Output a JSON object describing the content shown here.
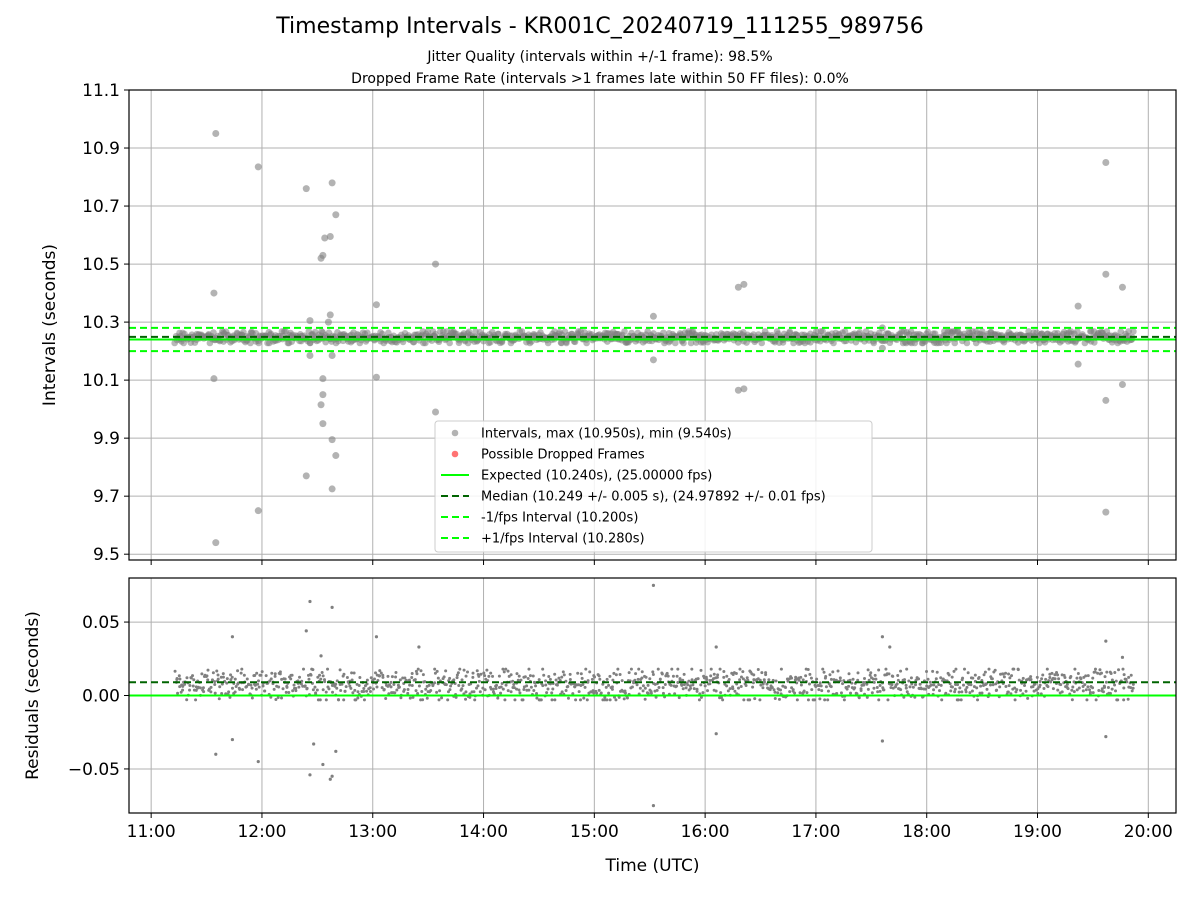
{
  "title": "Timestamp Intervals - KR001C_20240719_111255_989756",
  "subtitle_1": "Jitter Quality (intervals within +/-1 frame): 98.5%",
  "subtitle_2": "Dropped Frame Rate (intervals >1 frames late within 50 FF files): 0.0%",
  "colors": {
    "points": "#808080",
    "dropped": "#ff0000",
    "expected": "#00ff00",
    "median": "#006400",
    "fps_bounds": "#00ff00",
    "grid": "#b0b0b0"
  },
  "chart_data": [
    {
      "type": "scatter",
      "panel": "intervals",
      "ylabel": "Intervals (seconds)",
      "xlim": [
        "10:48",
        "20:15"
      ],
      "ylim": [
        9.48,
        11.1
      ],
      "yticks": [
        "9.5",
        "9.7",
        "9.9",
        "10.1",
        "10.3",
        "10.5",
        "10.7",
        "10.9",
        "11.1"
      ],
      "xticks": [
        "11:00",
        "12:00",
        "13:00",
        "14:00",
        "15:00",
        "16:00",
        "17:00",
        "18:00",
        "19:00",
        "20:00"
      ],
      "grid": true,
      "legend_position": "lower-center",
      "legend": [
        "Intervals, max (10.950s), min (9.540s)",
        "Possible Dropped Frames",
        "Expected (10.240s), (25.00000 fps)",
        "Median (10.249 +/- 0.005 s), (24.97892 +/- 0.01 fps)",
        "-1/fps Interval (10.200s)",
        "+1/fps Interval (10.280s)"
      ],
      "data_time_range": [
        "11:13",
        "19:52"
      ],
      "typical_band": [
        10.228,
        10.268
      ],
      "lines": {
        "expected": 10.24,
        "median": 10.249,
        "minus_fps": 10.2,
        "plus_fps": 10.28
      },
      "outliers": [
        {
          "t": "11:35",
          "y": 10.95
        },
        {
          "t": "11:34",
          "y": 10.4
        },
        {
          "t": "11:34",
          "y": 10.105
        },
        {
          "t": "11:35",
          "y": 9.54
        },
        {
          "t": "11:58",
          "y": 10.835
        },
        {
          "t": "11:58",
          "y": 9.65
        },
        {
          "t": "12:24",
          "y": 10.76
        },
        {
          "t": "12:24",
          "y": 9.77
        },
        {
          "t": "12:26",
          "y": 10.305
        },
        {
          "t": "12:26",
          "y": 10.185
        },
        {
          "t": "12:32",
          "y": 10.52
        },
        {
          "t": "12:33",
          "y": 10.53
        },
        {
          "t": "12:34",
          "y": 10.59
        },
        {
          "t": "12:37",
          "y": 10.595
        },
        {
          "t": "12:38",
          "y": 10.78
        },
        {
          "t": "12:40",
          "y": 10.67
        },
        {
          "t": "12:33",
          "y": 10.105
        },
        {
          "t": "12:32",
          "y": 10.015
        },
        {
          "t": "12:33",
          "y": 10.05
        },
        {
          "t": "12:33",
          "y": 9.95
        },
        {
          "t": "12:38",
          "y": 9.895
        },
        {
          "t": "12:40",
          "y": 9.84
        },
        {
          "t": "12:38",
          "y": 9.725
        },
        {
          "t": "12:37",
          "y": 10.325
        },
        {
          "t": "12:38",
          "y": 10.185
        },
        {
          "t": "12:36",
          "y": 10.3
        },
        {
          "t": "13:02",
          "y": 10.36
        },
        {
          "t": "13:02",
          "y": 10.11
        },
        {
          "t": "13:34",
          "y": 10.5
        },
        {
          "t": "13:34",
          "y": 9.99
        },
        {
          "t": "15:32",
          "y": 10.32
        },
        {
          "t": "15:32",
          "y": 10.17
        },
        {
          "t": "16:18",
          "y": 10.42
        },
        {
          "t": "16:21",
          "y": 10.43
        },
        {
          "t": "16:18",
          "y": 10.065
        },
        {
          "t": "16:21",
          "y": 10.07
        },
        {
          "t": "17:36",
          "y": 10.28
        },
        {
          "t": "17:36",
          "y": 10.21
        },
        {
          "t": "19:22",
          "y": 10.355
        },
        {
          "t": "19:22",
          "y": 10.155
        },
        {
          "t": "19:37",
          "y": 10.85
        },
        {
          "t": "19:37",
          "y": 10.465
        },
        {
          "t": "19:37",
          "y": 10.03
        },
        {
          "t": "19:37",
          "y": 9.645
        },
        {
          "t": "19:46",
          "y": 10.42
        },
        {
          "t": "19:46",
          "y": 10.085
        }
      ]
    },
    {
      "type": "scatter",
      "panel": "residuals",
      "ylabel": "Residuals (seconds)",
      "xlabel": "Time (UTC)",
      "xlim": [
        "10:48",
        "20:15"
      ],
      "ylim": [
        -0.08,
        0.08
      ],
      "yticks": [
        "−0.05",
        "0.00",
        "0.05"
      ],
      "xticks": [
        "11:00",
        "12:00",
        "13:00",
        "14:00",
        "15:00",
        "16:00",
        "17:00",
        "18:00",
        "19:00",
        "20:00"
      ],
      "grid": true,
      "data_time_range": [
        "11:13",
        "19:52"
      ],
      "typical_band": [
        -0.003,
        0.018
      ],
      "lines": {
        "expected": 0.0,
        "median": 0.009
      },
      "outliers": [
        {
          "t": "11:35",
          "y": -0.04
        },
        {
          "t": "11:44",
          "y": 0.04
        },
        {
          "t": "11:44",
          "y": -0.03
        },
        {
          "t": "11:58",
          "y": -0.045
        },
        {
          "t": "12:24",
          "y": 0.044
        },
        {
          "t": "12:26",
          "y": 0.064
        },
        {
          "t": "12:26",
          "y": -0.054
        },
        {
          "t": "12:28",
          "y": -0.033
        },
        {
          "t": "12:32",
          "y": 0.027
        },
        {
          "t": "12:33",
          "y": -0.047
        },
        {
          "t": "12:37",
          "y": -0.057
        },
        {
          "t": "12:38",
          "y": -0.055
        },
        {
          "t": "12:38",
          "y": 0.06
        },
        {
          "t": "12:40",
          "y": -0.038
        },
        {
          "t": "13:02",
          "y": 0.04
        },
        {
          "t": "13:25",
          "y": 0.033
        },
        {
          "t": "15:32",
          "y": 0.075
        },
        {
          "t": "15:32",
          "y": -0.075
        },
        {
          "t": "16:06",
          "y": 0.033
        },
        {
          "t": "16:06",
          "y": -0.026
        },
        {
          "t": "17:36",
          "y": 0.04
        },
        {
          "t": "17:36",
          "y": -0.031
        },
        {
          "t": "17:40",
          "y": 0.033
        },
        {
          "t": "19:37",
          "y": 0.037
        },
        {
          "t": "19:37",
          "y": -0.028
        },
        {
          "t": "19:46",
          "y": 0.026
        }
      ]
    }
  ]
}
